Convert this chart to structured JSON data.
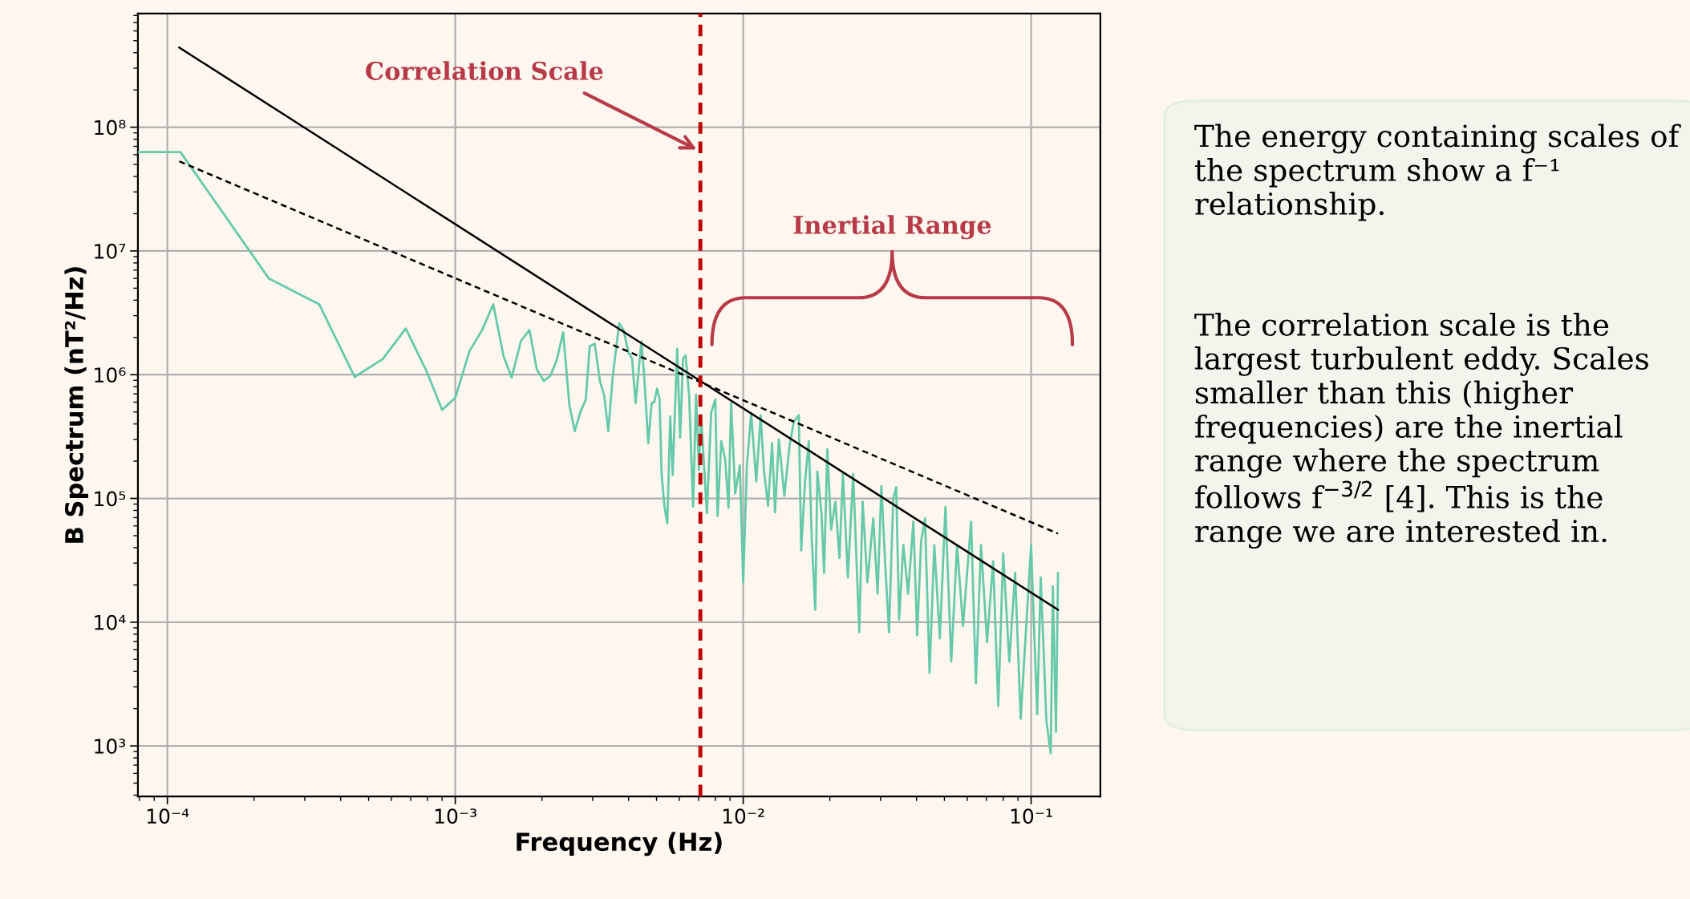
{
  "chart_data": [
    {
      "type": "line",
      "xlabel": "Frequency (Hz)",
      "ylabel": "B Spectrum (nT²/Hz)",
      "log": "xy",
      "grid": true,
      "xlim": [
        7.9e-05,
        0.174
      ],
      "ylim": [
        390,
        830000000.0
      ],
      "xticks": [
        {
          "value": 0.0001,
          "label": "10⁻⁴"
        },
        {
          "value": 0.001,
          "label": "10⁻³"
        },
        {
          "value": 0.01,
          "label": "10⁻²"
        },
        {
          "value": 0.1,
          "label": "10⁻¹"
        }
      ],
      "yticks": [
        {
          "value": 1000,
          "label": "10³"
        },
        {
          "value": 10000,
          "label": "10⁴"
        },
        {
          "value": 100000,
          "label": "10⁵"
        },
        {
          "value": 1000000,
          "label": "10⁶"
        },
        {
          "value": 10000000,
          "label": "10⁷"
        },
        {
          "value": 100000000,
          "label": "10⁸"
        }
      ],
      "ref_lines": [
        {
          "axis": "x",
          "value": 0.0071,
          "color": "#c00000",
          "line_style": "dashed"
        }
      ],
      "annotations": [
        {
          "text": "Correlation Scale",
          "x": 0.0069,
          "y": 66000000.0
        },
        "Inertial Range"
      ],
      "series": [
        {
          "color": "#66c9a8",
          "line_style": "solid",
          "x": [
            7.9e-05,
            0.000111,
            0.000225,
            0.000337,
            0.000447,
            0.00056,
            0.000673,
            0.000797,
            0.0009,
            0.001,
            0.00112,
            0.00124,
            0.001355,
            0.00147,
            0.00157,
            0.00169,
            0.00181,
            0.00192,
            0.00203,
            0.00214,
            0.00225,
            0.00237,
            0.00249,
            0.0026,
            0.00272,
            0.00284,
            0.00293,
            0.00305,
            0.00318,
            0.00329,
            0.0034,
            0.00352,
            0.00371,
            0.00384,
            0.004,
            0.00411,
            0.00423,
            0.00443,
            0.00453,
            0.00468,
            0.00481,
            0.00491,
            0.00502,
            0.00512,
            0.00521,
            0.00533,
            0.00545,
            0.00558,
            0.00569,
            0.0059,
            0.00604,
            0.00618,
            0.00631,
            0.00649,
            0.0067,
            0.00686,
            0.00702,
            0.00714,
            0.00748,
            0.00774,
            0.008,
            0.00815,
            0.00839,
            0.00866,
            0.00889,
            0.00908,
            0.00938,
            0.00974,
            0.01,
            0.0103,
            0.01066,
            0.0111,
            0.0115,
            0.0118,
            0.0122,
            0.0126,
            0.0129,
            0.0133,
            0.0139,
            0.0145,
            0.015,
            0.0156,
            0.0159,
            0.0164,
            0.0169,
            0.0173,
            0.0178,
            0.0181,
            0.0187,
            0.0191,
            0.0196,
            0.0202,
            0.0209,
            0.0216,
            0.0222,
            0.0231,
            0.0241,
            0.0253,
            0.026,
            0.027,
            0.0283,
            0.0293,
            0.0302,
            0.0311,
            0.0321,
            0.0332,
            0.034,
            0.0348,
            0.036,
            0.0374,
            0.039,
            0.0402,
            0.0415,
            0.0428,
            0.0444,
            0.0461,
            0.0482,
            0.0504,
            0.0528,
            0.0553,
            0.058,
            0.0619,
            0.0643,
            0.067,
            0.0703,
            0.0738,
            0.0769,
            0.08,
            0.084,
            0.088,
            0.092,
            0.1,
            0.105,
            0.108,
            0.113,
            0.117,
            0.119,
            0.122,
            0.124
          ],
          "values": [
            63000000.0,
            63000000.0,
            6000000.0,
            3700000.0,
            960000.0,
            1340000.0,
            2360000.0,
            1050000.0,
            520000.0,
            650000.0,
            1550000.0,
            2300000.0,
            3700000.0,
            1420000.0,
            950000.0,
            1870000.0,
            2300000.0,
            1100000.0,
            890000.0,
            980000.0,
            1310000.0,
            2200000.0,
            570000.0,
            350000.0,
            500000.0,
            630000.0,
            1700000.0,
            1780000.0,
            890000.0,
            680000.0,
            350000.0,
            950000.0,
            2600000.0,
            2300000.0,
            1500000.0,
            1350000.0,
            590000.0,
            1860000.0,
            980000.0,
            280000.0,
            590000.0,
            600000.0,
            770000.0,
            640000.0,
            155000.0,
            85000.0,
            63000.0,
            460000.0,
            155000.0,
            1620000.0,
            310000.0,
            1350000.0,
            1430000.0,
            680000.0,
            86000.0,
            690000.0,
            170000.0,
            470000.0,
            76000.0,
            490000.0,
            630000.0,
            72000.0,
            290000.0,
            207000.0,
            84000.0,
            590000.0,
            110000.0,
            185000.0,
            21000.0,
            185000.0,
            490000.0,
            137000.0,
            470000.0,
            170000.0,
            87000.0,
            280000.0,
            77000.0,
            300000.0,
            105000.0,
            270000.0,
            420000.0,
            470000.0,
            38000.0,
            137000.0,
            290000.0,
            48000.0,
            12600.0,
            165000.0,
            76000.0,
            25000.0,
            250000.0,
            56000.0,
            94000.0,
            33000.0,
            158000.0,
            23000.0,
            158000.0,
            8300.0,
            94000.0,
            21000.0,
            69000.0,
            17000.0,
            126000.0,
            31000.0,
            8300.0,
            100000.0,
            123000.0,
            10500.0,
            42000.0,
            17000.0,
            65000.0,
            7800.0,
            45000.0,
            69000.0,
            3900.0,
            42000.0,
            7400.0,
            85000.0,
            4800.0,
            42000.0,
            9300.0,
            65000.0,
            3200.0,
            42000.0,
            6900.0,
            31000.0,
            2100.0,
            36000.0,
            4800.0,
            25000.0,
            1660.0,
            42000.0,
            1800.0,
            23000.0,
            1600.0,
            870.0,
            19500.0,
            1300.0,
            25000.0
          ]
        },
        {
          "color": "#000000",
          "line_style": "solid",
          "x": [
            0.00011,
            0.124
          ],
          "values": [
            440000000.0,
            12600.0
          ]
        },
        {
          "color": "#000000",
          "line_style": "dashed",
          "x": [
            0.00011,
            0.124
          ],
          "values": [
            53000000.0,
            52000.0
          ]
        }
      ]
    },
    {
      "type": "other",
      "annotations": [
        "The energy containing scales of the spectrum show a f⁻¹ relationship.",
        "The correlation scale is the largest turbulent eddy. Scales smaller than this (higher frequencies) are the inertial range where the spectrum follows f$^{−3/2}$ [4]. This is the range we are interested in."
      ]
    }
  ]
}
